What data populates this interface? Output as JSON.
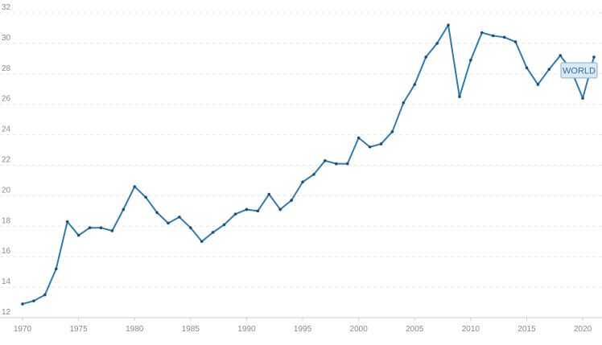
{
  "chart_data": {
    "type": "line",
    "title": "",
    "xlabel": "",
    "ylabel": "",
    "xlim": [
      1970,
      2021
    ],
    "ylim": [
      12,
      32
    ],
    "y_ticks": [
      "12",
      "14",
      "16",
      "18",
      "20",
      "22",
      "24",
      "26",
      "28",
      "30",
      "32"
    ],
    "x_ticks": [
      "1970",
      "1975",
      "1980",
      "1985",
      "1990",
      "1995",
      "2000",
      "2005",
      "2010",
      "2015",
      "2020"
    ],
    "grid": "horizontal-dashed",
    "line_color": "#2c7bb6",
    "series": [
      {
        "label": "WORLD",
        "x": [
          1970,
          1971,
          1972,
          1973,
          1974,
          1975,
          1976,
          1977,
          1978,
          1979,
          1980,
          1981,
          1982,
          1983,
          1984,
          1985,
          1986,
          1987,
          1988,
          1989,
          1990,
          1991,
          1992,
          1993,
          1994,
          1995,
          1996,
          1997,
          1998,
          1999,
          2000,
          2001,
          2002,
          2003,
          2004,
          2005,
          2006,
          2007,
          2008,
          2009,
          2010,
          2011,
          2012,
          2013,
          2014,
          2015,
          2016,
          2017,
          2018,
          2019,
          2020,
          2021
        ],
        "values": [
          12.9,
          13.1,
          13.5,
          15.2,
          18.3,
          17.4,
          17.9,
          17.9,
          17.7,
          19.1,
          20.6,
          19.9,
          18.9,
          18.2,
          18.6,
          17.9,
          17.0,
          17.6,
          18.1,
          18.8,
          19.1,
          19.0,
          20.1,
          19.1,
          19.7,
          20.9,
          21.4,
          22.3,
          22.1,
          22.1,
          23.8,
          23.2,
          23.4,
          24.2,
          26.1,
          27.3,
          29.1,
          30.0,
          31.2,
          26.5,
          28.9,
          30.7,
          30.5,
          30.4,
          30.1,
          28.4,
          27.3,
          28.3,
          29.2,
          28.2,
          26.4,
          29.1
        ]
      }
    ]
  }
}
